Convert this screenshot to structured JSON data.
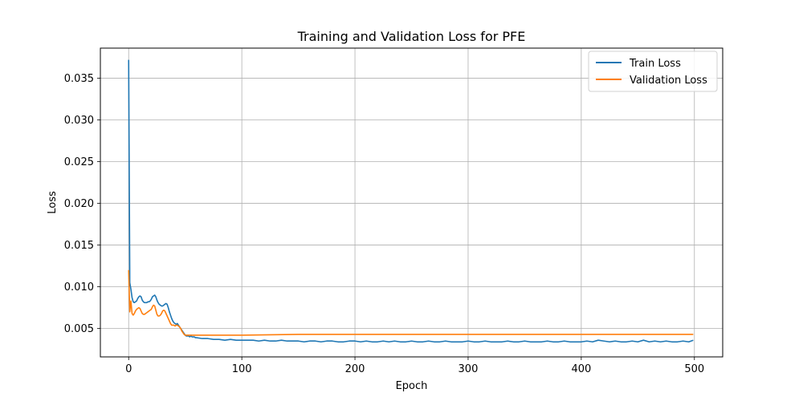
{
  "chart_data": {
    "type": "line",
    "title": "Training and Validation Loss for PFE",
    "xlabel": "Epoch",
    "ylabel": "Loss",
    "xlim": [
      -25,
      525
    ],
    "ylim": [
      0.0016,
      0.0386
    ],
    "xticks": [
      0,
      100,
      200,
      300,
      400,
      500
    ],
    "xtick_labels": [
      "0",
      "100",
      "200",
      "300",
      "400",
      "500"
    ],
    "yticks": [
      0.005,
      0.01,
      0.015,
      0.02,
      0.025,
      0.03,
      0.035
    ],
    "ytick_labels": [
      "0.005",
      "0.010",
      "0.015",
      "0.020",
      "0.025",
      "0.030",
      "0.035"
    ],
    "grid": true,
    "legend_position": "top-right",
    "series": [
      {
        "name": "Train Loss",
        "color": "#1f77b4",
        "x": [
          0,
          1,
          2,
          3,
          4,
          5,
          6,
          7,
          8,
          9,
          10,
          11,
          12,
          13,
          14,
          15,
          16,
          17,
          18,
          19,
          20,
          21,
          22,
          23,
          24,
          25,
          26,
          27,
          28,
          29,
          30,
          31,
          32,
          33,
          34,
          35,
          36,
          37,
          38,
          39,
          40,
          41,
          42,
          43,
          44,
          45,
          46,
          47,
          48,
          49,
          50,
          51,
          52,
          53,
          54,
          55,
          56,
          57,
          58,
          59,
          60,
          65,
          70,
          75,
          80,
          85,
          90,
          95,
          100,
          105,
          110,
          115,
          120,
          125,
          130,
          135,
          140,
          145,
          150,
          155,
          160,
          165,
          170,
          175,
          180,
          185,
          190,
          195,
          200,
          205,
          210,
          215,
          220,
          225,
          230,
          235,
          240,
          245,
          250,
          255,
          260,
          265,
          270,
          275,
          280,
          285,
          290,
          295,
          300,
          305,
          310,
          315,
          320,
          325,
          330,
          335,
          340,
          345,
          350,
          355,
          360,
          365,
          370,
          375,
          380,
          385,
          390,
          395,
          400,
          405,
          410,
          415,
          420,
          425,
          430,
          435,
          440,
          445,
          450,
          455,
          460,
          465,
          470,
          475,
          480,
          485,
          490,
          495,
          499
        ],
        "y": [
          0.0372,
          0.0105,
          0.0097,
          0.0087,
          0.0082,
          0.0081,
          0.0082,
          0.0083,
          0.0086,
          0.0088,
          0.0089,
          0.0088,
          0.0084,
          0.0082,
          0.0081,
          0.0081,
          0.0081,
          0.0082,
          0.0082,
          0.0083,
          0.0085,
          0.0088,
          0.0089,
          0.009,
          0.0088,
          0.0084,
          0.0081,
          0.0079,
          0.0078,
          0.0077,
          0.0077,
          0.0078,
          0.0079,
          0.008,
          0.0079,
          0.0075,
          0.007,
          0.0066,
          0.0062,
          0.0059,
          0.0057,
          0.0056,
          0.0055,
          0.0056,
          0.0054,
          0.0052,
          0.005,
          0.0048,
          0.0046,
          0.0044,
          0.0042,
          0.0041,
          0.0041,
          0.0041,
          0.004,
          0.0041,
          0.004,
          0.004,
          0.004,
          0.0039,
          0.0039,
          0.0038,
          0.0038,
          0.0037,
          0.0037,
          0.0036,
          0.0037,
          0.0036,
          0.0036,
          0.0036,
          0.0036,
          0.0035,
          0.0036,
          0.0035,
          0.0035,
          0.0036,
          0.0035,
          0.0035,
          0.0035,
          0.0034,
          0.0035,
          0.0035,
          0.0034,
          0.0035,
          0.0035,
          0.0034,
          0.0034,
          0.0035,
          0.0035,
          0.0034,
          0.0035,
          0.0034,
          0.0034,
          0.0035,
          0.0034,
          0.0035,
          0.0034,
          0.0034,
          0.0035,
          0.0034,
          0.0034,
          0.0035,
          0.0034,
          0.0034,
          0.0035,
          0.0034,
          0.0034,
          0.0034,
          0.0035,
          0.0034,
          0.0034,
          0.0035,
          0.0034,
          0.0034,
          0.0034,
          0.0035,
          0.0034,
          0.0034,
          0.0035,
          0.0034,
          0.0034,
          0.0034,
          0.0035,
          0.0034,
          0.0034,
          0.0035,
          0.0034,
          0.0034,
          0.0034,
          0.0035,
          0.0034,
          0.0036,
          0.0035,
          0.0034,
          0.0035,
          0.0034,
          0.0034,
          0.0035,
          0.0034,
          0.0036,
          0.0034,
          0.0035,
          0.0034,
          0.0035,
          0.0034,
          0.0034,
          0.0035,
          0.0034,
          0.0036
        ]
      },
      {
        "name": "Validation Loss",
        "color": "#ff7f0e",
        "x": [
          0,
          1,
          2,
          3,
          4,
          5,
          6,
          7,
          8,
          9,
          10,
          11,
          12,
          13,
          14,
          15,
          16,
          17,
          18,
          19,
          20,
          21,
          22,
          23,
          24,
          25,
          26,
          27,
          28,
          29,
          30,
          31,
          32,
          33,
          34,
          35,
          36,
          37,
          38,
          39,
          40,
          41,
          42,
          43,
          44,
          45,
          46,
          47,
          48,
          49,
          50,
          52,
          55,
          60,
          70,
          80,
          90,
          100,
          150,
          200,
          300,
          400,
          499
        ],
        "y": [
          0.012,
          0.007,
          0.0083,
          0.0068,
          0.0066,
          0.0068,
          0.0071,
          0.0073,
          0.0074,
          0.0075,
          0.0074,
          0.0071,
          0.0068,
          0.0067,
          0.0067,
          0.0068,
          0.0069,
          0.007,
          0.0071,
          0.0072,
          0.0073,
          0.0076,
          0.0078,
          0.0077,
          0.0072,
          0.0067,
          0.0065,
          0.0065,
          0.0066,
          0.0068,
          0.0071,
          0.0072,
          0.0071,
          0.0068,
          0.0065,
          0.0062,
          0.0059,
          0.0056,
          0.0054,
          0.0054,
          0.0054,
          0.0053,
          0.0054,
          0.0054,
          0.0053,
          0.0052,
          0.005,
          0.0047,
          0.0045,
          0.0043,
          0.0042,
          0.0042,
          0.0042,
          0.0042,
          0.0042,
          0.0042,
          0.0042,
          0.0042,
          0.0043,
          0.0043,
          0.0043,
          0.0043,
          0.0043
        ]
      }
    ]
  }
}
